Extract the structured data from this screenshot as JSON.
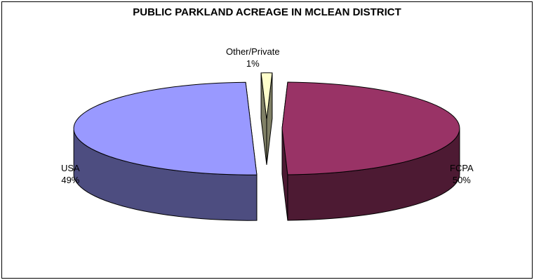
{
  "chart_data": {
    "type": "pie",
    "title": "PUBLIC PARKLAND ACREAGE IN MCLEAN DISTRICT",
    "slices": [
      {
        "label": "FCPA",
        "percent_label": "50%",
        "value": 50,
        "color": "#9999FF"
      },
      {
        "label": "Other/Private",
        "percent_label": "1%",
        "value": 1,
        "color": "#FFFFCC"
      },
      {
        "label": "USA",
        "percent_label": "49%",
        "value": 49,
        "color": "#993366"
      }
    ],
    "exploded": true,
    "three_d": true
  }
}
